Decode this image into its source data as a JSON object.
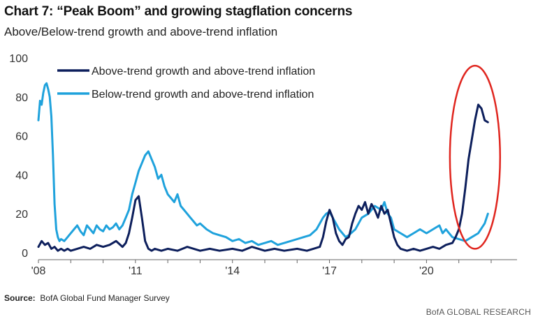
{
  "header": {
    "title": "Chart 7: “Peak Boom” and growing stagflation concerns",
    "subtitle": "Above/Below-trend growth and above-trend inflation"
  },
  "footer": {
    "source_label": "Source:",
    "source_text": "BofA Global Fund Manager Survey",
    "brand": "BofA GLOBAL RESEARCH"
  },
  "colors": {
    "dark_series": "#0d1f5c",
    "light_series": "#1fa2dc",
    "highlight_ellipse": "#e0261f",
    "axis": "#666666"
  },
  "chart_data": {
    "type": "line",
    "title": "Chart 7: “Peak Boom” and growing stagflation concerns",
    "subtitle": "Above/Below-trend growth and above-trend inflation",
    "xlim": [
      2008.0,
      2022.8
    ],
    "ylim": [
      0,
      100
    ],
    "yticks": [
      0,
      20,
      40,
      60,
      80,
      100
    ],
    "ytick_labels": [
      "0",
      "20",
      "40",
      "60",
      "80",
      "100"
    ],
    "xticks": [
      2008,
      2011,
      2014,
      2017,
      2020
    ],
    "xtick_labels": [
      "'08",
      "'11",
      "'14",
      "'17",
      "'20"
    ],
    "grid": false,
    "legend_position": "top-left",
    "annotation": {
      "shape": "ellipse",
      "around": "2021 spike",
      "x_center": 2021.5,
      "y_center": 49,
      "rx_years": 1.35,
      "ry_units": 47
    },
    "series": [
      {
        "name": "Above-trend growth and above-trend inflation",
        "color": "#0d1f5c",
        "x": [
          2008.0,
          2008.1,
          2008.2,
          2008.3,
          2008.4,
          2008.5,
          2008.6,
          2008.7,
          2008.8,
          2008.9,
          2009.0,
          2009.2,
          2009.4,
          2009.6,
          2009.8,
          2010.0,
          2010.2,
          2010.4,
          2010.6,
          2010.7,
          2010.8,
          2010.9,
          2011.0,
          2011.1,
          2011.2,
          2011.3,
          2011.4,
          2011.5,
          2011.6,
          2011.8,
          2012.0,
          2012.3,
          2012.6,
          2013.0,
          2013.3,
          2013.6,
          2014.0,
          2014.3,
          2014.6,
          2015.0,
          2015.3,
          2015.6,
          2016.0,
          2016.3,
          2016.5,
          2016.7,
          2016.8,
          2016.9,
          2017.0,
          2017.1,
          2017.2,
          2017.3,
          2017.4,
          2017.5,
          2017.6,
          2017.7,
          2017.8,
          2017.9,
          2018.0,
          2018.1,
          2018.2,
          2018.3,
          2018.4,
          2018.5,
          2018.6,
          2018.7,
          2018.8,
          2018.9,
          2019.0,
          2019.1,
          2019.2,
          2019.4,
          2019.6,
          2019.8,
          2020.0,
          2020.2,
          2020.4,
          2020.6,
          2020.8,
          2020.9,
          2021.0,
          2021.1,
          2021.2,
          2021.3,
          2021.4,
          2021.5,
          2021.6,
          2021.7,
          2021.8,
          2021.9
        ],
        "values": [
          3,
          6,
          4,
          5,
          2,
          3,
          1,
          2,
          1,
          2,
          1,
          2,
          3,
          2,
          4,
          3,
          4,
          6,
          3,
          5,
          10,
          18,
          27,
          29,
          18,
          6,
          2,
          1,
          2,
          1,
          2,
          1,
          3,
          1,
          2,
          1,
          2,
          1,
          3,
          1,
          2,
          1,
          2,
          1,
          2,
          3,
          8,
          16,
          22,
          18,
          10,
          6,
          4,
          7,
          8,
          15,
          20,
          24,
          22,
          26,
          20,
          25,
          22,
          18,
          24,
          20,
          22,
          15,
          8,
          4,
          2,
          1,
          2,
          1,
          2,
          3,
          2,
          4,
          5,
          8,
          12,
          20,
          33,
          48,
          58,
          68,
          76,
          74,
          68,
          67
        ]
      },
      {
        "name": "Below-trend growth and above-trend inflation",
        "color": "#1fa2dc",
        "x": [
          2008.0,
          2008.05,
          2008.1,
          2008.15,
          2008.2,
          2008.25,
          2008.3,
          2008.35,
          2008.4,
          2008.45,
          2008.5,
          2008.55,
          2008.6,
          2008.65,
          2008.7,
          2008.8,
          2008.9,
          2009.0,
          2009.1,
          2009.2,
          2009.3,
          2009.4,
          2009.5,
          2009.6,
          2009.7,
          2009.8,
          2009.9,
          2010.0,
          2010.1,
          2010.2,
          2010.3,
          2010.4,
          2010.5,
          2010.6,
          2010.7,
          2010.8,
          2010.9,
          2011.0,
          2011.1,
          2011.2,
          2011.3,
          2011.4,
          2011.5,
          2011.6,
          2011.7,
          2011.8,
          2011.9,
          2012.0,
          2012.1,
          2012.2,
          2012.3,
          2012.4,
          2012.5,
          2012.6,
          2012.7,
          2012.8,
          2012.9,
          2013.0,
          2013.2,
          2013.4,
          2013.6,
          2013.8,
          2014.0,
          2014.2,
          2014.4,
          2014.6,
          2014.8,
          2015.0,
          2015.2,
          2015.4,
          2015.6,
          2015.8,
          2016.0,
          2016.2,
          2016.4,
          2016.6,
          2016.7,
          2016.8,
          2016.9,
          2017.0,
          2017.1,
          2017.2,
          2017.3,
          2017.4,
          2017.5,
          2017.6,
          2017.8,
          2018.0,
          2018.2,
          2018.4,
          2018.6,
          2018.7,
          2018.8,
          2018.9,
          2019.0,
          2019.2,
          2019.4,
          2019.6,
          2019.8,
          2020.0,
          2020.2,
          2020.4,
          2020.5,
          2020.6,
          2020.8,
          2021.0,
          2021.2,
          2021.4,
          2021.6,
          2021.8,
          2021.9
        ],
        "values": [
          68,
          78,
          76,
          82,
          86,
          87,
          84,
          80,
          70,
          50,
          25,
          12,
          8,
          6,
          7,
          6,
          8,
          10,
          12,
          14,
          11,
          9,
          14,
          12,
          10,
          14,
          12,
          11,
          14,
          12,
          13,
          15,
          12,
          14,
          18,
          22,
          30,
          36,
          42,
          46,
          50,
          52,
          48,
          44,
          38,
          40,
          34,
          30,
          28,
          26,
          30,
          24,
          22,
          20,
          18,
          16,
          14,
          15,
          12,
          10,
          9,
          8,
          6,
          7,
          5,
          6,
          4,
          5,
          6,
          4,
          5,
          6,
          7,
          8,
          9,
          12,
          15,
          18,
          20,
          21,
          18,
          15,
          12,
          10,
          8,
          9,
          12,
          18,
          20,
          24,
          22,
          26,
          20,
          18,
          12,
          10,
          8,
          10,
          12,
          10,
          12,
          14,
          10,
          12,
          8,
          7,
          6,
          8,
          10,
          15,
          20
        ]
      }
    ]
  }
}
